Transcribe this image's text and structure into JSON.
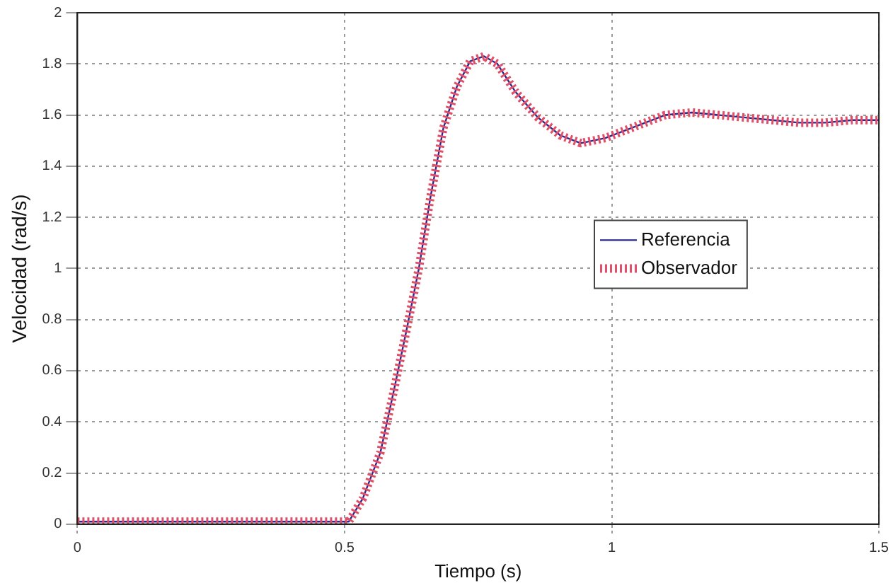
{
  "chart_data": {
    "type": "line",
    "xlabel": "Tiempo (s)",
    "ylabel": "Velocidad (rad/s)",
    "xlim": [
      0,
      1.5
    ],
    "xticks": [
      0,
      0.5,
      1,
      1.5
    ],
    "ylim": [
      0,
      2
    ],
    "yticks": [
      0,
      0.2,
      0.4,
      0.6,
      0.8,
      1,
      1.2,
      1.4,
      1.6,
      1.8,
      2
    ],
    "grid": true,
    "legend": "right",
    "x": [
      0,
      0.5,
      0.508,
      0.534,
      0.567,
      0.592,
      0.618,
      0.639,
      0.66,
      0.685,
      0.71,
      0.735,
      0.761,
      0.786,
      0.82,
      0.862,
      0.904,
      0.942,
      0.988,
      1.05,
      1.1,
      1.15,
      1.2,
      1.25,
      1.3,
      1.35,
      1.4,
      1.45,
      1.5
    ],
    "series": [
      {
        "name": "Referencia",
        "color": "#2a2a8c",
        "line_style": "solid",
        "values": [
          0.01,
          0.01,
          0.01,
          0.1,
          0.28,
          0.52,
          0.78,
          1.0,
          1.27,
          1.55,
          1.71,
          1.81,
          1.83,
          1.8,
          1.69,
          1.59,
          1.52,
          1.49,
          1.51,
          1.56,
          1.6,
          1.61,
          1.6,
          1.59,
          1.58,
          1.57,
          1.57,
          1.58,
          1.58
        ]
      },
      {
        "name": "Observador",
        "color": "#e0506a",
        "line_style": "dotted",
        "values": [
          0.01,
          0.01,
          0.01,
          0.1,
          0.28,
          0.52,
          0.78,
          1.0,
          1.27,
          1.55,
          1.71,
          1.81,
          1.83,
          1.8,
          1.69,
          1.59,
          1.52,
          1.49,
          1.51,
          1.56,
          1.6,
          1.61,
          1.6,
          1.59,
          1.58,
          1.57,
          1.57,
          1.58,
          1.58
        ]
      }
    ]
  }
}
